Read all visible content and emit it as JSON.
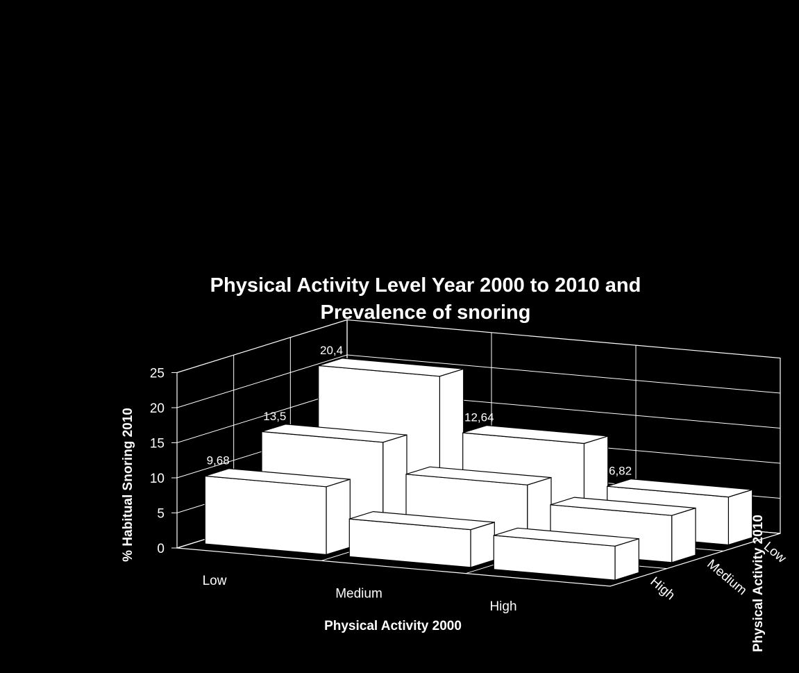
{
  "chart_data": {
    "type": "bar",
    "subtype": "3d-column",
    "title": [
      "Physical Activity Level Year 2000 to  2010 and",
      "Prevalence of snoring"
    ],
    "xlabel": "Physical Activity 2000",
    "ylabel": "% Habitual Snoring 2010",
    "depth_label": "Physical Activity 2010",
    "categories": [
      "Low",
      "Medium",
      "High"
    ],
    "depth_categories": [
      "Low",
      "Medium",
      "High"
    ],
    "ylim": [
      0,
      25
    ],
    "yticks": [
      "0",
      "5",
      "10",
      "15",
      "20",
      "25"
    ],
    "grid": true,
    "colors": {
      "background": "#000000",
      "bars": "#ffffff",
      "bar_shade": "#ffffff",
      "text": "#ffffff"
    },
    "series": [
      {
        "name": "High",
        "values": [
          9.68,
          5.37,
          4.84
        ],
        "labels": [
          "9,68",
          "5,37",
          "4,84"
        ]
      },
      {
        "name": "Medium",
        "values": [
          13.5,
          9.24,
          6.7
        ],
        "labels": [
          "13,5",
          "9,24",
          "6,7"
        ]
      },
      {
        "name": "Low",
        "values": [
          20.4,
          12.64,
          6.82
        ],
        "labels": [
          "20,4",
          "12,64",
          "6,82"
        ]
      }
    ]
  }
}
